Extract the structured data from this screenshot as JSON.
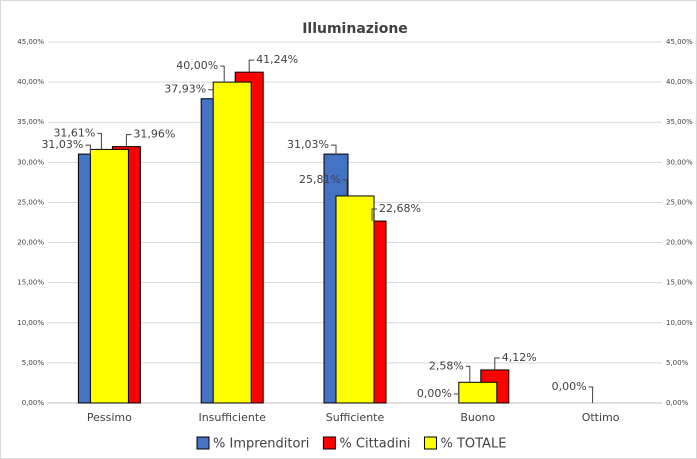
{
  "chart_data": {
    "type": "bar",
    "title": "Illuminazione",
    "categories": [
      "Pessimo",
      "Insufficiente",
      "Sufficiente",
      "Buono",
      "Ottimo"
    ],
    "series": [
      {
        "name": "% Imprenditori",
        "color": "#4472c4",
        "values": [
          31.03,
          37.93,
          31.03,
          0,
          0
        ],
        "value_labels": [
          "31,03%",
          "37,93%",
          "31,03%",
          "0,00%",
          null
        ]
      },
      {
        "name": "% Cittadini",
        "color": "#ff0000",
        "values": [
          31.96,
          41.24,
          22.68,
          4.12,
          0
        ],
        "value_labels": [
          "31,96%",
          "41,24%",
          "22,68%",
          "4,12%",
          null
        ]
      },
      {
        "name": "% TOTALE",
        "color": "#ffff00",
        "values": [
          31.61,
          40.0,
          25.81,
          2.58,
          0
        ],
        "value_labels": [
          "31,61%",
          "40,00%",
          "25,81%",
          "2,58%",
          "0,00%"
        ]
      }
    ],
    "ylim": [
      0,
      45
    ],
    "yticks": [
      {
        "value": 0,
        "label": "0,00%"
      },
      {
        "value": 5,
        "label": "5,00%"
      },
      {
        "value": 10,
        "label": "10,00%"
      },
      {
        "value": 15,
        "label": "15,00%"
      },
      {
        "value": 20,
        "label": "20,00%"
      },
      {
        "value": 25,
        "label": "25,00%"
      },
      {
        "value": 30,
        "label": "30,00%"
      },
      {
        "value": 35,
        "label": "35,00%"
      },
      {
        "value": 40,
        "label": "40,00%"
      },
      {
        "value": 45,
        "label": "45,00%"
      }
    ],
    "y2lim": [
      0,
      45
    ],
    "y2ticks": [
      {
        "value": 0,
        "label": "0,00%"
      },
      {
        "value": 5,
        "label": "5,00%"
      },
      {
        "value": 10,
        "label": "10,00%"
      },
      {
        "value": 15,
        "label": "15,00%"
      },
      {
        "value": 20,
        "label": "20,00%"
      },
      {
        "value": 25,
        "label": "25,00%"
      },
      {
        "value": 30,
        "label": "30,00%"
      },
      {
        "value": 35,
        "label": "35,00%"
      },
      {
        "value": 40,
        "label": "40,00%"
      },
      {
        "value": 45,
        "label": "45,00%"
      }
    ],
    "grid": true,
    "legend": "bottom"
  }
}
